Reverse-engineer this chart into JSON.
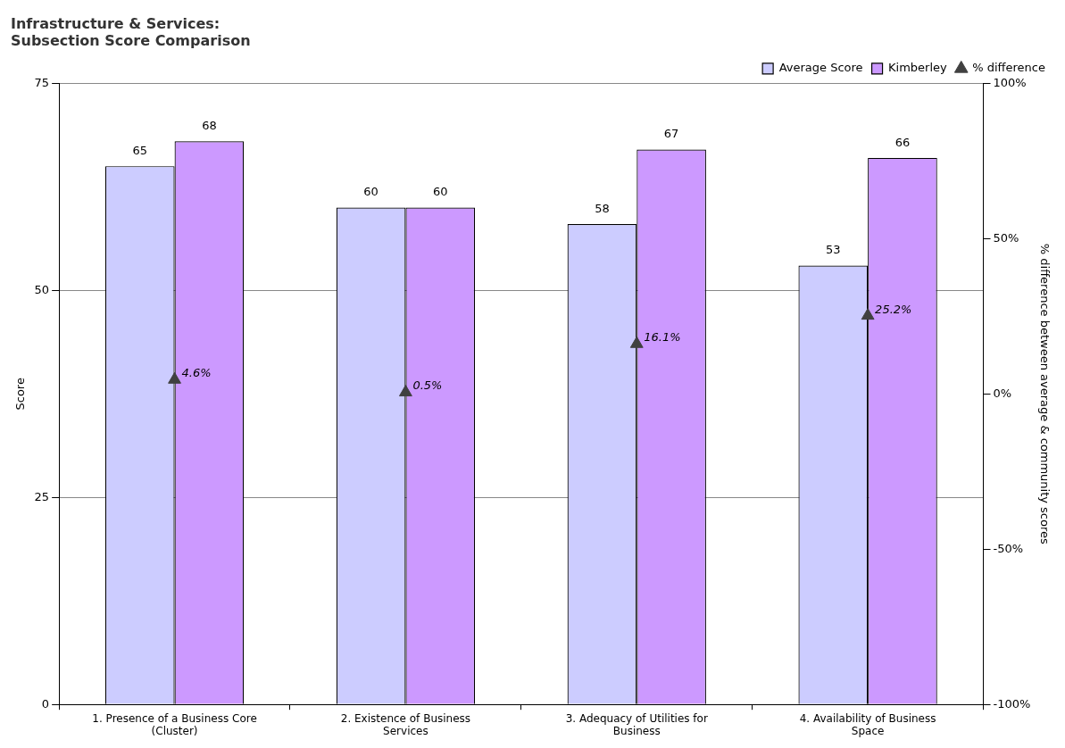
{
  "chart_data": {
    "type": "bar",
    "title": "Infrastructure & Services:\nSubsection Score Comparison",
    "categories": [
      "1. Presence of a Business Core (Cluster)",
      "2. Existence of Business Services",
      "3. Adequacy of Utilities for Business",
      "4. Availability of Business Space"
    ],
    "series": [
      {
        "name": "Average Score",
        "color": "#ccccff",
        "values": [
          65,
          60,
          58,
          53
        ]
      },
      {
        "name": "Kimberley",
        "color": "#cc99ff",
        "values": [
          68,
          60,
          67,
          66
        ]
      },
      {
        "name": "% difference",
        "type": "scatter",
        "axis": "y2",
        "color": "#404040",
        "marker": "triangle",
        "values": [
          4.6,
          0.5,
          16.1,
          25.2
        ],
        "value_labels": [
          "4.6%",
          "0.5%",
          "16.1%",
          "25.2%"
        ]
      }
    ],
    "ylabel": "Score",
    "y2label": "% difference between average & community scores",
    "ylim": [
      0,
      75
    ],
    "yticks": [
      0,
      25,
      50,
      75
    ],
    "y2lim": [
      -100,
      100
    ],
    "y2ticks": [
      {
        "value": -100,
        "label": "-100%"
      },
      {
        "value": -50,
        "label": "-50%"
      },
      {
        "value": 0,
        "label": "0%"
      },
      {
        "value": 50,
        "label": "50%"
      },
      {
        "value": 100,
        "label": "100%"
      }
    ],
    "data_labels": true,
    "grid": "y",
    "legend": "top right"
  }
}
